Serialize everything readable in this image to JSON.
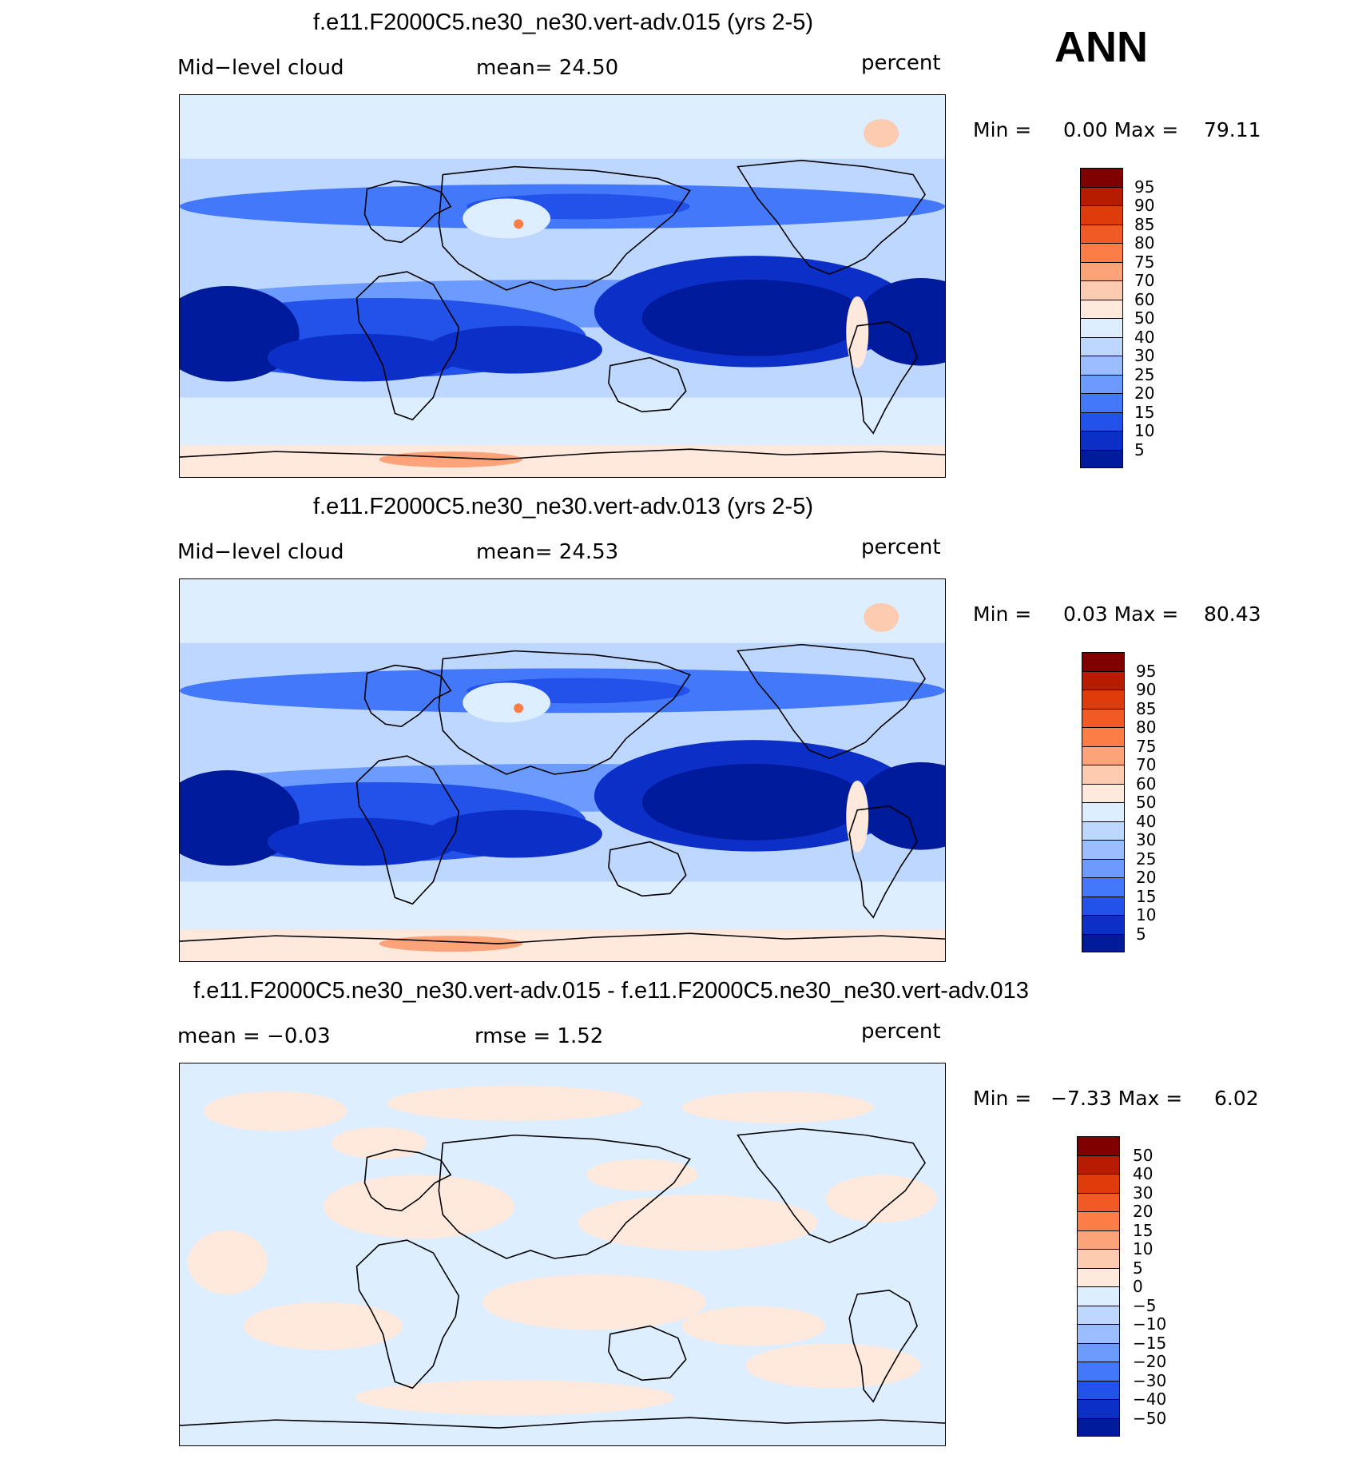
{
  "season": "ANN",
  "panels": [
    {
      "title": "f.e11.F2000C5.ne30_ne30.vert-adv.015 (yrs 2-5)",
      "left_label": "Mid−level cloud",
      "mid_label": "mean=   24.50",
      "right_label": "percent",
      "minmax": "Min =     0.00 Max =    79.11",
      "kind": "field",
      "colorbar": {
        "labels": [
          "95",
          "90",
          "85",
          "80",
          "75",
          "70",
          "60",
          "50",
          "40",
          "30",
          "25",
          "20",
          "15",
          "10",
          "5"
        ],
        "colors": [
          "#800000",
          "#b81c00",
          "#de3c0a",
          "#f25a25",
          "#fc7d45",
          "#fda37a",
          "#fdcbaf",
          "#fee9dc",
          "#dceeff",
          "#bdd7ff",
          "#99bdff",
          "#6c9bff",
          "#4478fa",
          "#2252ea",
          "#0c2fc8",
          "#001a9c"
        ]
      }
    },
    {
      "title": "f.e11.F2000C5.ne30_ne30.vert-adv.013 (yrs 2-5)",
      "left_label": "Mid−level cloud",
      "mid_label": "mean=   24.53",
      "right_label": "percent",
      "minmax": "Min =     0.03 Max =    80.43",
      "kind": "field",
      "colorbar": {
        "labels": [
          "95",
          "90",
          "85",
          "80",
          "75",
          "70",
          "60",
          "50",
          "40",
          "30",
          "25",
          "20",
          "15",
          "10",
          "5"
        ],
        "colors": [
          "#800000",
          "#b81c00",
          "#de3c0a",
          "#f25a25",
          "#fc7d45",
          "#fda37a",
          "#fdcbaf",
          "#fee9dc",
          "#dceeff",
          "#bdd7ff",
          "#99bdff",
          "#6c9bff",
          "#4478fa",
          "#2252ea",
          "#0c2fc8",
          "#001a9c"
        ]
      }
    },
    {
      "title": "f.e11.F2000C5.ne30_ne30.vert-adv.015 - f.e11.F2000C5.ne30_ne30.vert-adv.013",
      "left_label": "mean =   −0.03",
      "mid_label": "rmse =    1.52",
      "right_label": "percent",
      "minmax": "Min =   −7.33 Max =     6.02",
      "kind": "diff",
      "colorbar": {
        "labels": [
          "50",
          "40",
          "30",
          "20",
          "15",
          "10",
          "5",
          "0",
          "−5",
          "−10",
          "−15",
          "−20",
          "−30",
          "−40",
          "−50"
        ],
        "colors": [
          "#800000",
          "#b81c00",
          "#de3c0a",
          "#f25a25",
          "#fc7d45",
          "#fda37a",
          "#fdcbaf",
          "#fee9dc",
          "#dceeff",
          "#bdd7ff",
          "#99bdff",
          "#6c9bff",
          "#4478fa",
          "#2252ea",
          "#0c2fc8",
          "#001a9c"
        ]
      }
    }
  ]
}
